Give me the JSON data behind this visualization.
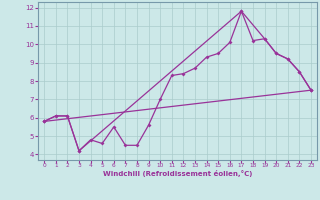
{
  "xlabel": "Windchill (Refroidissement éolien,°C)",
  "background_color": "#cce8e8",
  "grid_color": "#aacccc",
  "line_color": "#993399",
  "xlim": [
    -0.5,
    23.5
  ],
  "ylim": [
    3.7,
    12.3
  ],
  "xticks": [
    0,
    1,
    2,
    3,
    4,
    5,
    6,
    7,
    8,
    9,
    10,
    11,
    12,
    13,
    14,
    15,
    16,
    17,
    18,
    19,
    20,
    21,
    22,
    23
  ],
  "yticks": [
    4,
    5,
    6,
    7,
    8,
    9,
    10,
    11,
    12
  ],
  "line1_x": [
    0,
    1,
    2,
    3,
    4,
    5,
    6,
    7,
    8,
    9,
    10,
    11,
    12,
    13,
    14,
    15,
    16,
    17,
    18,
    19,
    20,
    21,
    22,
    23
  ],
  "line1_y": [
    5.8,
    6.1,
    6.1,
    4.2,
    4.8,
    4.6,
    5.5,
    4.5,
    4.5,
    5.6,
    7.0,
    8.3,
    8.4,
    8.7,
    9.3,
    9.5,
    10.1,
    11.8,
    10.2,
    10.3,
    9.5,
    9.2,
    8.5,
    7.5
  ],
  "line2_x": [
    0,
    23
  ],
  "line2_y": [
    5.8,
    7.5
  ],
  "line3_x": [
    0,
    1,
    2,
    3,
    17,
    19,
    20,
    21,
    22,
    23
  ],
  "line3_y": [
    5.8,
    6.1,
    6.1,
    4.2,
    11.8,
    10.3,
    9.5,
    9.2,
    8.5,
    7.5
  ]
}
